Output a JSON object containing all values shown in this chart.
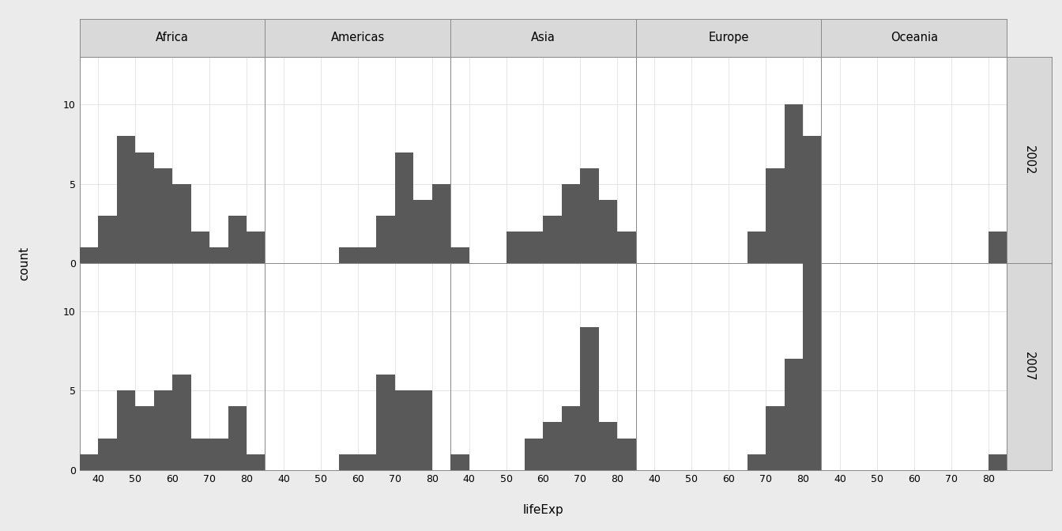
{
  "continents": [
    "Africa",
    "Americas",
    "Asia",
    "Europe",
    "Oceania"
  ],
  "years": [
    2002,
    2007
  ],
  "bar_color": "#595959",
  "background_color": "#ebebeb",
  "plot_bg_color": "#ffffff",
  "strip_bg_color": "#d9d9d9",
  "grid_color": "#e5e5e5",
  "xlabel": "lifeExp",
  "ylabel": "count",
  "xlim": [
    35,
    85
  ],
  "xticks": [
    40,
    50,
    60,
    70,
    80
  ],
  "ylim": [
    0,
    13
  ],
  "yticks": [
    0,
    5,
    10
  ],
  "bin_edges": [
    35,
    40,
    45,
    50,
    55,
    60,
    65,
    70,
    75,
    80,
    85
  ],
  "bin_width": 5,
  "hist_data": {
    "Africa_2002": [
      1,
      3,
      8,
      7,
      6,
      5,
      2,
      1,
      3,
      2
    ],
    "Americas_2002": [
      0,
      0,
      0,
      0,
      1,
      1,
      3,
      7,
      4,
      5
    ],
    "Asia_2002": [
      1,
      0,
      0,
      2,
      2,
      3,
      5,
      6,
      4,
      2
    ],
    "Europe_2002": [
      0,
      0,
      0,
      0,
      0,
      0,
      2,
      6,
      10,
      8
    ],
    "Oceania_2002": [
      0,
      0,
      0,
      0,
      0,
      0,
      0,
      0,
      0,
      2
    ],
    "Africa_2007": [
      1,
      2,
      5,
      4,
      5,
      6,
      2,
      2,
      4,
      1
    ],
    "Americas_2007": [
      0,
      0,
      0,
      0,
      1,
      1,
      6,
      5,
      5,
      0
    ],
    "Asia_2007": [
      1,
      0,
      0,
      0,
      2,
      3,
      4,
      9,
      3,
      2
    ],
    "Europe_2007": [
      0,
      0,
      0,
      0,
      0,
      0,
      1,
      4,
      7,
      13
    ],
    "Oceania_2007": [
      0,
      0,
      0,
      0,
      0,
      0,
      0,
      0,
      0,
      1
    ]
  }
}
